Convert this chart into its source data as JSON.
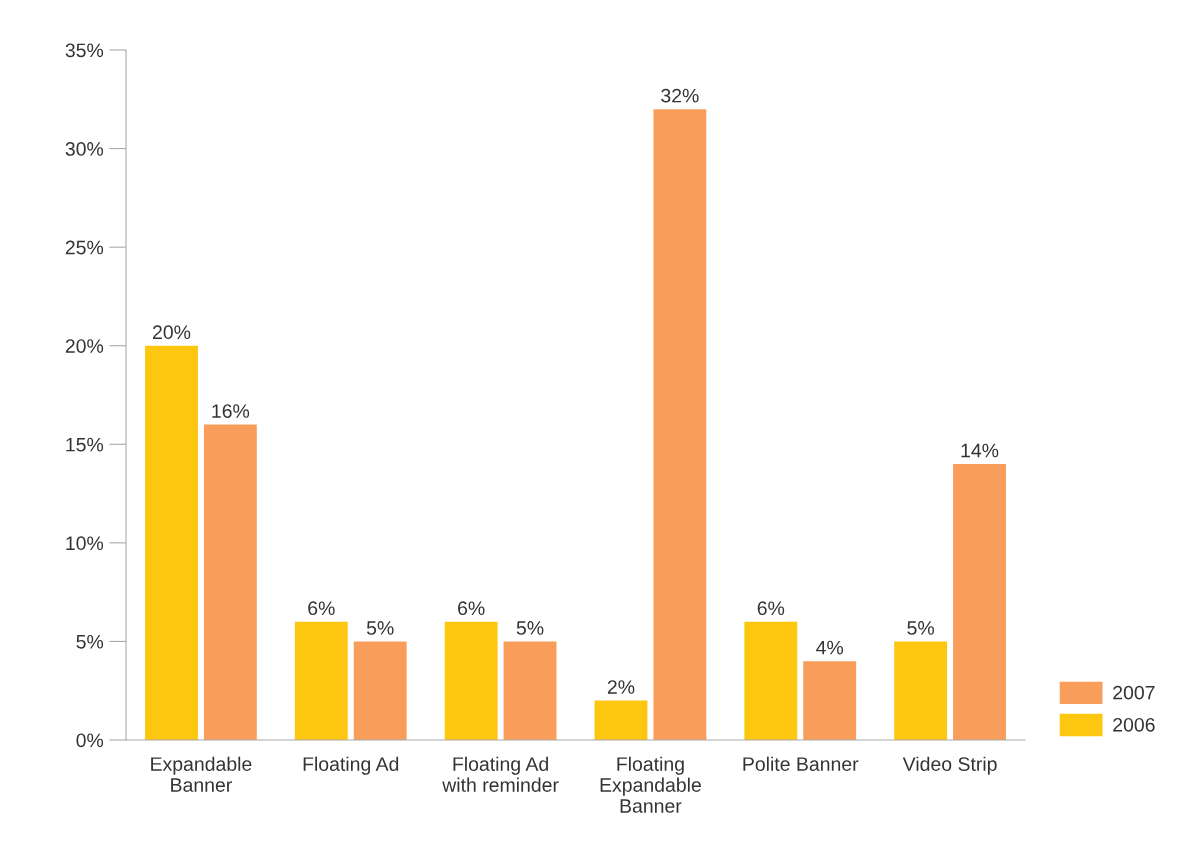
{
  "chart_data": {
    "type": "bar",
    "categories": [
      "Expandable\nBanner",
      "Floating Ad",
      "Floating Ad\nwith reminder",
      "Floating\nExpandable\nBanner",
      "Polite Banner",
      "Video Strip"
    ],
    "series": [
      {
        "name": "2006",
        "color": "#fdc70f",
        "values": [
          20,
          6,
          6,
          2,
          6,
          5
        ],
        "value_labels": [
          "20%",
          "6%",
          "6%",
          "2%",
          "6%",
          "5%"
        ]
      },
      {
        "name": "2007",
        "color": "#f89d5a",
        "values": [
          16,
          5,
          5,
          32,
          4,
          14
        ],
        "value_labels": [
          "16%",
          "5%",
          "5%",
          "32%",
          "4%",
          "14%"
        ]
      }
    ],
    "ylim": [
      0,
      35
    ],
    "yticks": [
      {
        "value": 0,
        "label": "0%"
      },
      {
        "value": 5,
        "label": "5%"
      },
      {
        "value": 10,
        "label": "10%"
      },
      {
        "value": 15,
        "label": "15%"
      },
      {
        "value": 20,
        "label": "20%"
      },
      {
        "value": 25,
        "label": "25%"
      },
      {
        "value": 30,
        "label": "30%"
      },
      {
        "value": 35,
        "label": "35%"
      }
    ],
    "grid": false,
    "legend": "right"
  }
}
